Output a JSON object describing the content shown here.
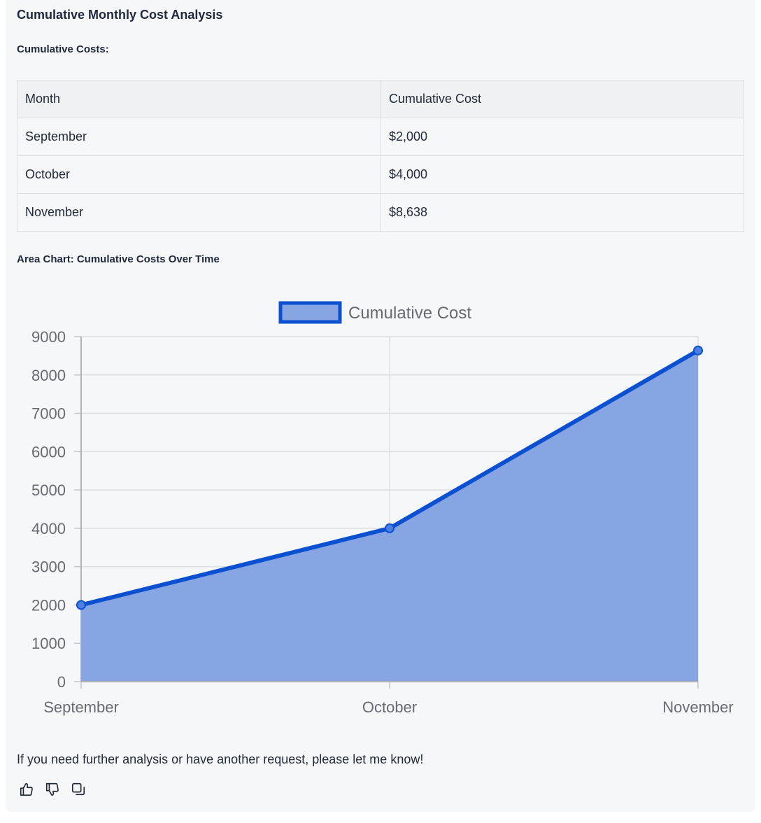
{
  "title": "Cumulative Monthly Cost Analysis",
  "table_heading": "Cumulative Costs:",
  "table": {
    "headers": [
      "Month",
      "Cumulative Cost"
    ],
    "rows": [
      [
        "September",
        "$2,000"
      ],
      [
        "October",
        "$4,000"
      ],
      [
        "November",
        "$8,638"
      ]
    ]
  },
  "chart_heading": "Area Chart: Cumulative Costs Over Time",
  "chart_data": {
    "type": "area",
    "categories": [
      "September",
      "October",
      "November"
    ],
    "series": [
      {
        "name": "Cumulative Cost",
        "values": [
          2000,
          4000,
          8638
        ]
      }
    ],
    "ylim": [
      0,
      9000
    ],
    "yticks": [
      0,
      1000,
      2000,
      3000,
      4000,
      5000,
      6000,
      7000,
      8000,
      9000
    ],
    "legend_position": "top",
    "grid": true,
    "colors": {
      "line": "#0a50d0",
      "fill": "#86a5e2"
    }
  },
  "footer_text": "If you need further analysis or have another request, please let me know!",
  "actions": [
    {
      "icon": "thumbs-up-icon"
    },
    {
      "icon": "thumbs-down-icon"
    },
    {
      "icon": "copy-icon"
    }
  ]
}
